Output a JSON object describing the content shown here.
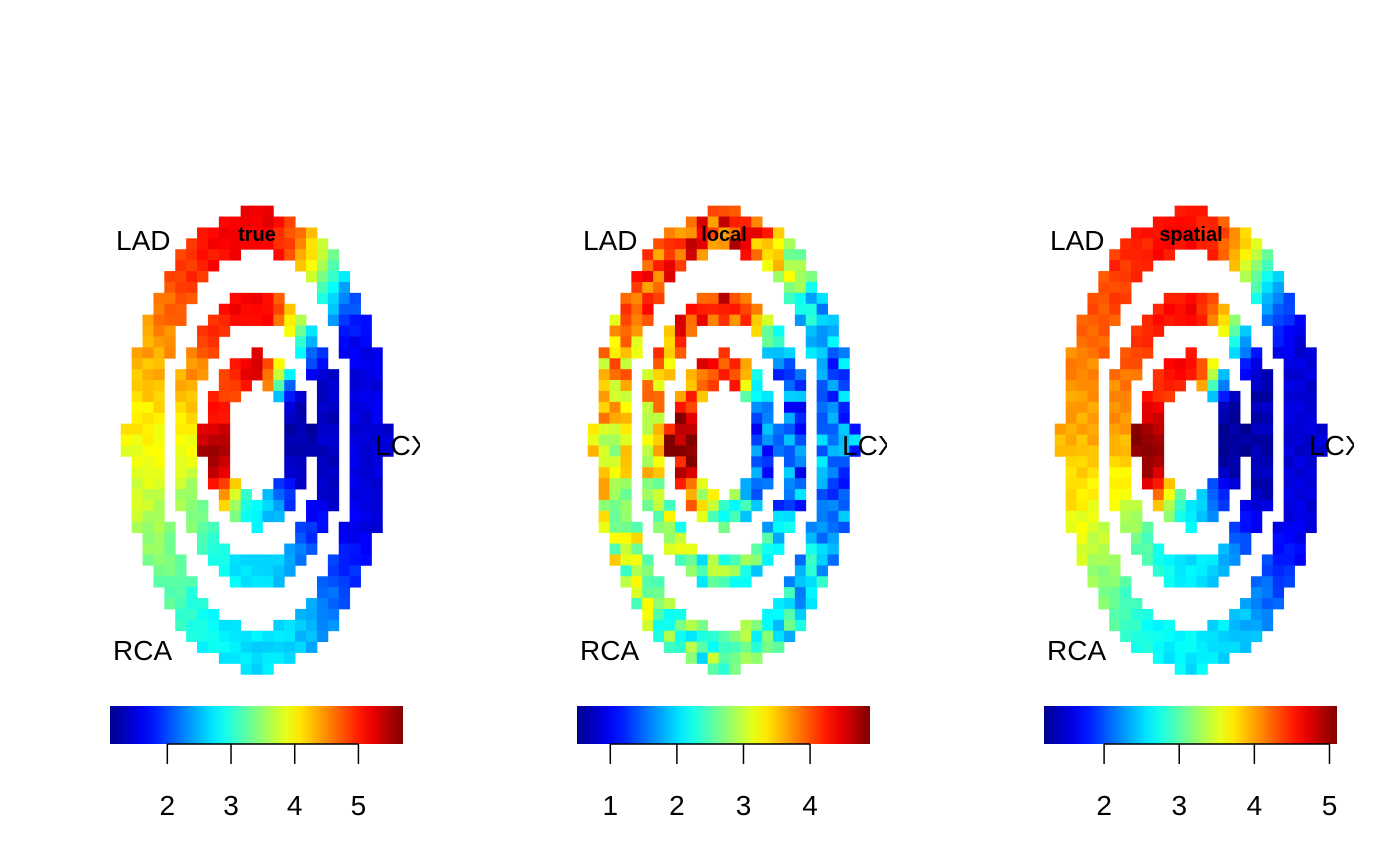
{
  "chart_data": [
    {
      "type": "heatmap",
      "title": "true",
      "region_labels": {
        "top_left": "LAD",
        "right": "LCX",
        "bottom_left": "RCA"
      },
      "colormap": "jet",
      "colorbar": {
        "min": 1.1,
        "max": 5.7,
        "ticks": [
          2,
          3,
          4,
          5
        ]
      },
      "field": {
        "anterior": 5.2,
        "lateral": 1.5,
        "inferior": 2.7,
        "septal": 3.9,
        "inner_left_peak": 5.5,
        "noise": 0.12
      }
    },
    {
      "type": "heatmap",
      "title": "local",
      "region_labels": {
        "top_left": "LAD",
        "right": "LCX",
        "bottom_left": "RCA"
      },
      "colormap": "jet",
      "colorbar": {
        "min": 0.5,
        "max": 4.9,
        "ticks": [
          1,
          2,
          3,
          4
        ]
      },
      "field": {
        "anterior": 4.2,
        "lateral": 1.6,
        "inferior": 2.5,
        "septal": 3.2,
        "inner_left_peak": 4.7,
        "noise": 0.55
      }
    },
    {
      "type": "heatmap",
      "title": "spatial",
      "region_labels": {
        "top_left": "LAD",
        "right": "LCX",
        "bottom_left": "RCA"
      },
      "colormap": "jet",
      "colorbar": {
        "min": 1.2,
        "max": 5.1,
        "ticks": [
          2,
          3,
          4,
          5
        ]
      },
      "field": {
        "anterior": 4.6,
        "lateral": 1.5,
        "inferior": 2.6,
        "septal": 3.9,
        "inner_left_peak": 5.1,
        "noise": 0.1
      }
    }
  ]
}
